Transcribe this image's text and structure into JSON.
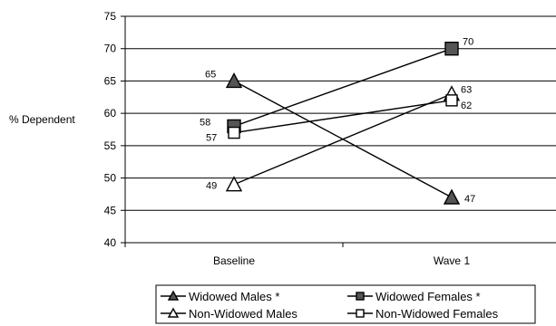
{
  "chart_data": {
    "type": "line",
    "title": "",
    "xlabel": "",
    "ylabel": "% Dependent",
    "categories": [
      "Baseline",
      "Wave 1"
    ],
    "ylim": [
      40,
      75
    ],
    "yticks": [
      40,
      45,
      50,
      55,
      60,
      65,
      70,
      75
    ],
    "grid": true,
    "legend_position": "bottom",
    "series": [
      {
        "name": "Widowed Males *",
        "values": [
          65,
          47
        ],
        "labels": [
          "65",
          "47"
        ],
        "marker": "filled-triangle"
      },
      {
        "name": "Widowed Females *",
        "values": [
          58,
          70
        ],
        "labels": [
          "58",
          "70"
        ],
        "marker": "filled-square"
      },
      {
        "name": "Non-Widowed Males",
        "values": [
          49,
          63
        ],
        "labels": [
          "49",
          "63"
        ],
        "marker": "open-triangle"
      },
      {
        "name": "Non-Widowed Females",
        "values": [
          57,
          62
        ],
        "labels": [
          "57",
          "62"
        ],
        "marker": "open-square"
      }
    ]
  }
}
